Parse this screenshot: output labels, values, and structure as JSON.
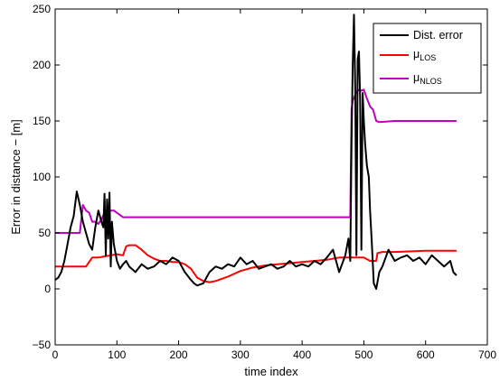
{
  "colors": {
    "dist_error": "#000000",
    "mu_los": "#ff0000",
    "mu_nlos": "#bf00bf",
    "axes": "#000000",
    "background": "#ffffff"
  },
  "chart_data": {
    "type": "line",
    "title": "",
    "xlabel": "time index",
    "ylabel": "Error in distance − [m]",
    "xlim": [
      0,
      700
    ],
    "ylim": [
      -50,
      250
    ],
    "xticks": [
      "0",
      "100",
      "200",
      "300",
      "400",
      "500",
      "600",
      "700"
    ],
    "yticks": [
      "−50",
      "0",
      "50",
      "100",
      "150",
      "200",
      "250"
    ],
    "grid": false,
    "legend_position": "top-right",
    "legend": [
      {
        "main": "Dist. error",
        "sub": ""
      },
      {
        "main": "μ",
        "sub": "LOS"
      },
      {
        "main": "μ",
        "sub": "NLOS"
      }
    ],
    "series": [
      {
        "name": "Dist. error",
        "x": [
          0,
          5,
          10,
          15,
          20,
          25,
          30,
          35,
          40,
          45,
          50,
          55,
          60,
          65,
          70,
          75,
          78,
          80,
          82,
          84,
          86,
          88,
          90,
          92,
          95,
          100,
          105,
          110,
          115,
          120,
          130,
          140,
          150,
          160,
          170,
          180,
          190,
          200,
          210,
          220,
          225,
          230,
          240,
          250,
          260,
          270,
          280,
          290,
          300,
          310,
          320,
          330,
          340,
          350,
          360,
          370,
          380,
          390,
          400,
          410,
          420,
          430,
          440,
          450,
          460,
          470,
          475,
          478,
          480,
          482,
          484,
          486,
          488,
          490,
          492,
          494,
          496,
          498,
          500,
          502,
          505,
          508,
          510,
          513,
          516,
          520,
          525,
          530,
          540,
          550,
          560,
          570,
          580,
          590,
          600,
          610,
          620,
          630,
          640,
          645,
          650
        ],
        "values": [
          8,
          10,
          15,
          25,
          40,
          55,
          65,
          87,
          75,
          60,
          50,
          40,
          35,
          55,
          70,
          60,
          55,
          85,
          30,
          80,
          45,
          86,
          20,
          60,
          40,
          25,
          18,
          22,
          25,
          20,
          15,
          22,
          18,
          20,
          25,
          22,
          28,
          25,
          15,
          8,
          5,
          3,
          5,
          15,
          20,
          18,
          22,
          20,
          28,
          22,
          25,
          18,
          20,
          22,
          18,
          20,
          25,
          20,
          22,
          20,
          25,
          22,
          28,
          35,
          15,
          30,
          45,
          25,
          130,
          200,
          245,
          180,
          30,
          205,
          212,
          170,
          35,
          175,
          150,
          130,
          110,
          100,
          70,
          40,
          5,
          0,
          15,
          20,
          35,
          25,
          28,
          30,
          25,
          28,
          22,
          30,
          25,
          20,
          25,
          15,
          12
        ]
      },
      {
        "name": "μ_LOS",
        "x": [
          0,
          40,
          50,
          60,
          70,
          80,
          90,
          100,
          110,
          115,
          120,
          130,
          140,
          150,
          160,
          170,
          180,
          190,
          200,
          210,
          220,
          230,
          240,
          250,
          260,
          270,
          280,
          300,
          320,
          340,
          360,
          380,
          400,
          420,
          440,
          460,
          470,
          480,
          500,
          510,
          520,
          522,
          530,
          550,
          600,
          650
        ],
        "values": [
          20,
          20,
          20,
          28,
          28,
          29,
          30,
          31,
          30,
          38,
          39,
          39,
          35,
          30,
          27,
          25,
          25,
          24,
          24,
          22,
          18,
          10,
          7,
          6,
          7,
          9,
          11,
          16,
          19,
          21,
          22,
          23,
          24,
          25,
          26,
          28,
          28,
          28,
          28,
          25,
          25,
          32,
          33,
          33,
          34,
          34
        ]
      },
      {
        "name": "μ_NLOS",
        "x": [
          0,
          40,
          45,
          50,
          55,
          60,
          65,
          70,
          75,
          80,
          85,
          90,
          95,
          100,
          105,
          110,
          120,
          200,
          300,
          400,
          440,
          460,
          478,
          480,
          482,
          485,
          490,
          495,
          500,
          505,
          510,
          515,
          520,
          525,
          550,
          600,
          650
        ],
        "values": [
          50,
          50,
          75,
          70,
          68,
          60,
          60,
          58,
          62,
          68,
          70,
          70,
          70,
          68,
          66,
          64,
          64,
          64,
          64,
          64,
          64,
          64,
          64,
          160,
          168,
          172,
          178,
          177,
          178,
          170,
          163,
          160,
          150,
          149,
          150,
          150,
          150
        ]
      }
    ]
  }
}
